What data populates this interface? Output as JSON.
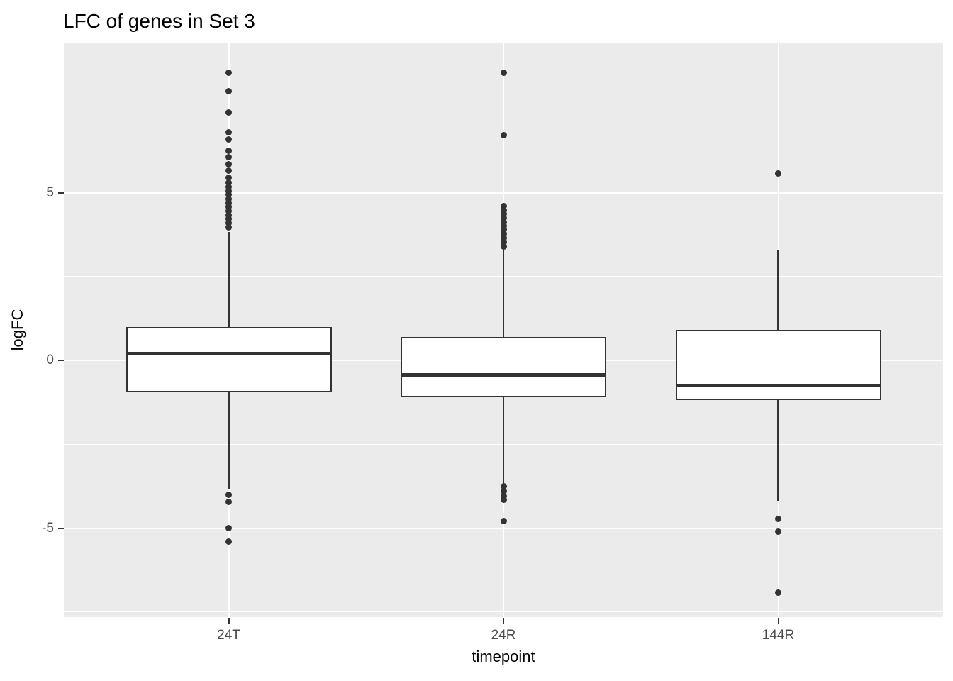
{
  "chart_data": {
    "type": "boxplot",
    "title": "LFC of genes in Set 3",
    "xlabel": "timepoint",
    "ylabel": "logFC",
    "categories": [
      "24T",
      "24R",
      "144R"
    ],
    "ylim": [
      -7.65,
      9.45
    ],
    "grid": "on",
    "y_major_ticks": [
      5,
      0,
      -5
    ],
    "y_major_tick_labels": [
      "5",
      "0",
      "-5"
    ],
    "y_minor_ticks": [
      7.5,
      2.5,
      -2.5,
      -7.5
    ],
    "series": [
      {
        "category": "24T",
        "q1": -0.95,
        "median": 0.2,
        "q3": 1.0,
        "whisker_low": -3.85,
        "whisker_high": 3.83,
        "outliers_high": [
          8.58,
          8.03,
          7.39,
          6.8,
          6.59,
          6.25,
          6.05,
          5.85,
          5.65,
          5.45,
          5.3,
          5.17,
          5.05,
          4.93,
          4.81,
          4.69,
          4.57,
          4.45,
          4.33,
          4.21,
          4.09,
          3.97
        ],
        "outliers_low": [
          -4.0,
          -4.22,
          -5.0,
          -5.39
        ]
      },
      {
        "category": "24R",
        "q1": -1.1,
        "median": -0.43,
        "q3": 0.69,
        "whisker_low": -3.65,
        "whisker_high": 3.31,
        "outliers_high": [
          8.58,
          6.72,
          4.6,
          4.48,
          4.36,
          4.24,
          4.12,
          4.0,
          3.9,
          3.78,
          3.64,
          3.52,
          3.4
        ],
        "outliers_low": [
          -3.75,
          -3.9,
          -4.05,
          -4.15,
          -4.79
        ]
      },
      {
        "category": "144R",
        "q1": -1.19,
        "median": -0.74,
        "q3": 0.91,
        "whisker_low": -4.18,
        "whisker_high": 3.27,
        "outliers_high": [
          5.58
        ],
        "outliers_low": [
          -4.73,
          -5.11,
          -6.92
        ]
      }
    ]
  },
  "colors": {
    "page_bg": "#FFFFFF",
    "panel_bg": "#EBEBEB",
    "grid": "#FFFFFF",
    "box_fill": "#FFFFFF",
    "line": "#333333",
    "tick_label": "#4D4D4D",
    "text": "#000000"
  }
}
